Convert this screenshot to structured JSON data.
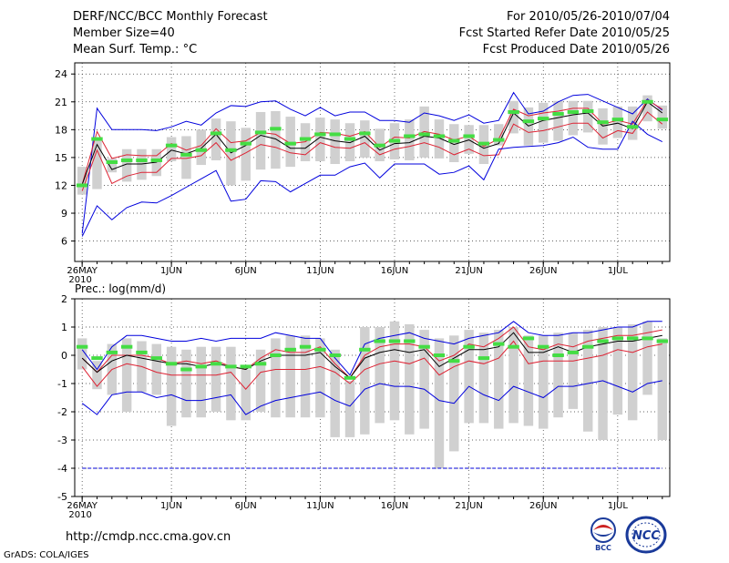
{
  "header": {
    "title": "DERF/NCC/BCC Monthly Forecast",
    "member_size": "Member Size=40",
    "variable": "Mean Surf. Temp.: °C",
    "period": "For 2010/05/26-2010/07/04",
    "fcst_started": "Fcst Started Refer Date 2010/05/25",
    "fcst_produced": "Fcst Produced Date 2010/05/26"
  },
  "footer": {
    "url": "http://cmdp.ncc.cma.gov.cn",
    "credit": "GrADS: COLA/IGES",
    "logo_bcc_text": "BCC",
    "logo_ncc_text": "NCC"
  },
  "colors": {
    "ensemble_mean": "#000000",
    "member_spread": "#dd2233",
    "member_extreme": "#0000dd",
    "climatology": "#44dd44",
    "box": "#d0d0d0",
    "frame": "#000000",
    "grid": "#333333"
  },
  "chart_data": [
    {
      "type": "line",
      "title": "Mean Surf. Temp.: °C",
      "x": [
        1,
        2,
        3,
        4,
        5,
        6,
        7,
        8,
        9,
        10,
        11,
        12,
        13,
        14,
        15,
        16,
        17,
        18,
        19,
        20,
        21,
        22,
        23,
        24,
        25,
        26,
        27,
        28,
        29,
        30,
        31,
        32,
        33,
        34,
        35,
        36,
        37,
        38,
        39,
        40
      ],
      "x_ticks": [
        {
          "x": 1,
          "label": "26MAY",
          "sub": "2010"
        },
        {
          "x": 7,
          "label": "1JUN"
        },
        {
          "x": 12,
          "label": "6JUN"
        },
        {
          "x": 17,
          "label": "11JUN"
        },
        {
          "x": 22,
          "label": "16JUN"
        },
        {
          "x": 27,
          "label": "21JUN"
        },
        {
          "x": 32,
          "label": "26JUN"
        },
        {
          "x": 37,
          "label": "1JUL"
        }
      ],
      "ylim": [
        3.8,
        25.2
      ],
      "y_ticks": [
        6,
        9,
        12,
        15,
        18,
        21,
        24
      ],
      "series": [
        {
          "name": "max",
          "values": [
            6.8,
            20.3,
            18.0,
            18.0,
            18.0,
            17.9,
            18.3,
            18.9,
            18.5,
            19.8,
            20.6,
            20.5,
            21.0,
            21.1,
            20.2,
            19.5,
            20.4,
            19.5,
            19.9,
            19.9,
            19.0,
            19.0,
            18.8,
            19.8,
            19.5,
            19.0,
            19.6,
            18.7,
            19.0,
            22.0,
            19.7,
            20.0,
            21.0,
            21.7,
            21.8,
            21.1,
            20.4,
            19.7,
            21.3,
            20.1
          ]
        },
        {
          "name": "upper",
          "values": [
            12.1,
            17.8,
            14.9,
            15.3,
            15.2,
            15.2,
            16.5,
            15.8,
            16.3,
            18.1,
            16.6,
            16.8,
            17.7,
            17.5,
            16.5,
            16.7,
            17.7,
            17.6,
            17.3,
            17.8,
            16.1,
            17.2,
            17.1,
            17.8,
            17.5,
            16.9,
            17.3,
            16.2,
            17.0,
            20.2,
            19.5,
            19.8,
            20.0,
            20.3,
            20.3,
            18.6,
            19.0,
            18.6,
            21.2,
            20.2
          ]
        },
        {
          "name": "mean",
          "values": [
            12.1,
            16.4,
            13.7,
            14.3,
            14.3,
            14.5,
            15.8,
            15.4,
            16.0,
            17.5,
            15.5,
            16.3,
            17.4,
            17.0,
            16.0,
            16.0,
            17.2,
            16.8,
            16.6,
            17.3,
            15.8,
            16.5,
            16.6,
            17.3,
            17.1,
            16.4,
            16.9,
            16.0,
            16.5,
            19.8,
            18.4,
            19.0,
            19.3,
            19.6,
            19.8,
            18.4,
            18.7,
            18.1,
            21.0,
            19.8
          ]
        },
        {
          "name": "lower",
          "values": [
            11.4,
            15.8,
            12.2,
            13.0,
            13.4,
            13.4,
            14.9,
            14.9,
            15.2,
            16.6,
            14.7,
            15.5,
            16.4,
            16.1,
            15.5,
            15.3,
            16.6,
            16.1,
            16.0,
            16.6,
            15.3,
            15.9,
            16.2,
            16.6,
            16.1,
            15.3,
            15.9,
            15.2,
            15.3,
            18.6,
            17.7,
            17.9,
            18.3,
            18.7,
            18.7,
            17.1,
            17.9,
            17.6,
            19.9,
            18.6
          ]
        },
        {
          "name": "min",
          "values": [
            6.5,
            9.8,
            8.3,
            9.6,
            10.2,
            10.1,
            10.9,
            11.8,
            12.7,
            13.6,
            10.3,
            10.5,
            12.5,
            12.4,
            11.3,
            12.2,
            13.1,
            13.1,
            14.0,
            14.4,
            12.8,
            14.3,
            14.3,
            14.3,
            13.2,
            13.4,
            14.1,
            12.6,
            15.9,
            16.1,
            16.2,
            16.3,
            16.6,
            17.2,
            16.1,
            15.9,
            15.9,
            18.9,
            17.5,
            16.7
          ]
        },
        {
          "name": "observed",
          "values": [
            12.1,
            16.2,
            13.6,
            14.7,
            14.6,
            14.8,
            15.9,
            15.2,
            15.6,
            17.6,
            15.5,
            16.5,
            17.7,
            18.0,
            16.5,
            17.0,
            17.7,
            17.5,
            17.0,
            17.6,
            16.2,
            16.9,
            17.0,
            17.5,
            17.4,
            16.7,
            17.1,
            16.5,
            16.9,
            19.8,
            18.5,
            19.1,
            19.5,
            19.7,
            20.0,
            18.6,
            18.8,
            18.1,
            20.8,
            19.0
          ]
        }
      ],
      "boxes": [
        {
          "lo": 11.0,
          "hi": 14.0
        },
        {
          "lo": 11.6,
          "hi": 17.1
        },
        {
          "lo": 13.4,
          "hi": 14.9
        },
        {
          "lo": 12.4,
          "hi": 15.9
        },
        {
          "lo": 12.6,
          "hi": 15.9
        },
        {
          "lo": 13.0,
          "hi": 15.9
        },
        {
          "lo": 14.6,
          "hi": 17.2
        },
        {
          "lo": 12.7,
          "hi": 17.3
        },
        {
          "lo": 14.2,
          "hi": 18.0
        },
        {
          "lo": 14.7,
          "hi": 19.2
        },
        {
          "lo": 12.0,
          "hi": 18.9
        },
        {
          "lo": 12.5,
          "hi": 18.2
        },
        {
          "lo": 13.7,
          "hi": 19.9
        },
        {
          "lo": 13.8,
          "hi": 20.0
        },
        {
          "lo": 14.0,
          "hi": 19.4
        },
        {
          "lo": 14.6,
          "hi": 18.7
        },
        {
          "lo": 14.6,
          "hi": 19.3
        },
        {
          "lo": 14.3,
          "hi": 19.1
        },
        {
          "lo": 14.6,
          "hi": 18.7
        },
        {
          "lo": 15.0,
          "hi": 19.0
        },
        {
          "lo": 14.6,
          "hi": 18.1
        },
        {
          "lo": 14.8,
          "hi": 18.7
        },
        {
          "lo": 14.7,
          "hi": 19.1
        },
        {
          "lo": 15.0,
          "hi": 20.5
        },
        {
          "lo": 14.9,
          "hi": 19.1
        },
        {
          "lo": 14.5,
          "hi": 18.6
        },
        {
          "lo": 15.4,
          "hi": 18.5
        },
        {
          "lo": 14.3,
          "hi": 18.5
        },
        {
          "lo": 16.3,
          "hi": 18.6
        },
        {
          "lo": 17.6,
          "hi": 21.1
        },
        {
          "lo": 16.3,
          "hi": 20.4
        },
        {
          "lo": 16.6,
          "hi": 20.9
        },
        {
          "lo": 16.8,
          "hi": 21.1
        },
        {
          "lo": 17.4,
          "hi": 21.1
        },
        {
          "lo": 17.7,
          "hi": 21.1
        },
        {
          "lo": 16.4,
          "hi": 20.3
        },
        {
          "lo": 17.1,
          "hi": 20.5
        },
        {
          "lo": 16.9,
          "hi": 20.5
        },
        {
          "lo": 18.9,
          "hi": 21.7
        },
        {
          "lo": 18.1,
          "hi": 20.6
        }
      ],
      "climatology": [
        12.0,
        17.0,
        14.5,
        14.7,
        14.7,
        14.7,
        16.3,
        15.3,
        15.8,
        17.6,
        15.8,
        16.5,
        17.7,
        18.1,
        16.5,
        17.0,
        17.5,
        17.5,
        17.0,
        17.6,
        16.3,
        16.8,
        17.3,
        17.5,
        17.3,
        16.8,
        17.3,
        16.5,
        16.9,
        19.9,
        18.9,
        19.2,
        19.7,
        19.9,
        20.0,
        18.8,
        19.1,
        18.3,
        21.0,
        19.1
      ]
    },
    {
      "type": "line",
      "title": "Prec.: log(mm/d)",
      "x": [
        1,
        2,
        3,
        4,
        5,
        6,
        7,
        8,
        9,
        10,
        11,
        12,
        13,
        14,
        15,
        16,
        17,
        18,
        19,
        20,
        21,
        22,
        23,
        24,
        25,
        26,
        27,
        28,
        29,
        30,
        31,
        32,
        33,
        34,
        35,
        36,
        37,
        38,
        39,
        40
      ],
      "x_ticks": [
        {
          "x": 1,
          "label": "26MAY",
          "sub": "2010"
        },
        {
          "x": 7,
          "label": "1JUN"
        },
        {
          "x": 12,
          "label": "6JUN"
        },
        {
          "x": 17,
          "label": "11JUN"
        },
        {
          "x": 22,
          "label": "16JUN"
        },
        {
          "x": 27,
          "label": "21JUN"
        },
        {
          "x": 32,
          "label": "26JUN"
        },
        {
          "x": 37,
          "label": "1JUL"
        }
      ],
      "ylim": [
        -5,
        2
      ],
      "y_ticks": [
        -5,
        -4,
        -3,
        -2,
        -1,
        0,
        1,
        2
      ],
      "series": [
        {
          "name": "max",
          "values": [
            0.2,
            -0.5,
            0.3,
            0.7,
            0.7,
            0.6,
            0.5,
            0.5,
            0.6,
            0.5,
            0.6,
            0.6,
            0.6,
            0.8,
            0.7,
            0.6,
            0.6,
            -0.1,
            -0.7,
            0.4,
            0.6,
            0.7,
            0.8,
            0.6,
            0.5,
            0.4,
            0.6,
            0.7,
            0.8,
            1.2,
            0.8,
            0.7,
            0.7,
            0.8,
            0.8,
            0.9,
            1.0,
            1.0,
            1.2,
            1.2
          ]
        },
        {
          "name": "upper",
          "values": [
            -0.1,
            -0.6,
            0.0,
            0.0,
            0.0,
            -0.1,
            -0.3,
            -0.2,
            -0.3,
            -0.2,
            -0.4,
            -0.5,
            -0.1,
            0.2,
            0.1,
            0.1,
            0.3,
            -0.3,
            -0.8,
            0.0,
            0.3,
            0.4,
            0.4,
            0.3,
            -0.2,
            0.0,
            0.4,
            0.3,
            0.6,
            1.0,
            0.3,
            0.2,
            0.4,
            0.3,
            0.5,
            0.6,
            0.7,
            0.7,
            0.8,
            0.9
          ]
        },
        {
          "name": "mean",
          "values": [
            -0.1,
            -0.6,
            -0.2,
            0.0,
            -0.1,
            -0.2,
            -0.3,
            -0.3,
            -0.4,
            -0.3,
            -0.4,
            -0.5,
            -0.2,
            0.0,
            0.0,
            0.0,
            0.1,
            -0.4,
            -0.8,
            -0.1,
            0.1,
            0.2,
            0.1,
            0.2,
            -0.4,
            -0.1,
            0.2,
            0.2,
            0.3,
            0.8,
            0.1,
            0.1,
            0.3,
            0.1,
            0.3,
            0.4,
            0.5,
            0.5,
            0.6,
            0.7
          ]
        },
        {
          "name": "lower",
          "values": [
            -0.4,
            -1.1,
            -0.5,
            -0.3,
            -0.4,
            -0.6,
            -0.7,
            -0.7,
            -0.7,
            -0.7,
            -0.6,
            -1.2,
            -0.6,
            -0.5,
            -0.5,
            -0.5,
            -0.4,
            -0.6,
            -1.0,
            -0.5,
            -0.3,
            -0.2,
            -0.3,
            -0.1,
            -0.7,
            -0.4,
            -0.2,
            -0.3,
            -0.1,
            0.5,
            -0.3,
            -0.2,
            -0.2,
            -0.2,
            -0.1,
            0.0,
            0.2,
            0.1,
            0.3,
            0.4
          ]
        },
        {
          "name": "min",
          "values": [
            -1.7,
            -2.1,
            -1.4,
            -1.3,
            -1.3,
            -1.5,
            -1.4,
            -1.6,
            -1.6,
            -1.5,
            -1.4,
            -2.1,
            -1.8,
            -1.6,
            -1.5,
            -1.4,
            -1.3,
            -1.6,
            -1.8,
            -1.2,
            -1.0,
            -1.1,
            -1.1,
            -1.2,
            -1.6,
            -1.7,
            -1.1,
            -1.4,
            -1.6,
            -1.1,
            -1.3,
            -1.5,
            -1.1,
            -1.1,
            -1.0,
            -0.9,
            -1.1,
            -1.3,
            -1.0,
            -0.9
          ]
        },
        {
          "name": "observed",
          "values": [
            0.3,
            -0.1,
            0.1,
            0.3,
            0.1,
            -0.1,
            -0.3,
            -0.5,
            -0.4,
            -0.3,
            -0.4,
            -0.4,
            -0.3,
            0.0,
            0.2,
            0.3,
            0.2,
            0.0,
            -0.8,
            0.2,
            0.5,
            0.5,
            0.5,
            0.3,
            0.0,
            -0.2,
            0.3,
            -0.1,
            0.4,
            0.3,
            0.6,
            0.3,
            0.0,
            0.1,
            0.3,
            0.5,
            0.6,
            0.6,
            0.6,
            0.5
          ]
        },
        {
          "name": "floor",
          "values": [
            -4,
            -4,
            -4,
            -4,
            -4,
            -4,
            -4,
            -4,
            -4,
            -4,
            -4,
            -4,
            -4,
            -4,
            -4,
            -4,
            -4,
            -4,
            -4,
            -4,
            -4,
            -4,
            -4,
            -4,
            -4,
            -4,
            -4,
            -4,
            -4,
            -4,
            -4,
            -4,
            -4,
            -4,
            -4,
            -4,
            -4,
            -4,
            -4,
            -4
          ]
        }
      ],
      "boxes": [
        {
          "lo": -0.5,
          "hi": 0.6
        },
        {
          "lo": -1.2,
          "hi": -0.2
        },
        {
          "lo": -1.4,
          "hi": 0.4
        },
        {
          "lo": -2.0,
          "hi": 0.6
        },
        {
          "lo": -1.3,
          "hi": 0.5
        },
        {
          "lo": -1.4,
          "hi": 0.4
        },
        {
          "lo": -2.5,
          "hi": 0.3
        },
        {
          "lo": -2.2,
          "hi": 0.2
        },
        {
          "lo": -2.2,
          "hi": 0.3
        },
        {
          "lo": -2.0,
          "hi": 0.3
        },
        {
          "lo": -2.3,
          "hi": 0.3
        },
        {
          "lo": -2.3,
          "hi": -0.5
        },
        {
          "lo": -2.0,
          "hi": 0.2
        },
        {
          "lo": -2.2,
          "hi": 0.6
        },
        {
          "lo": -2.2,
          "hi": 0.7
        },
        {
          "lo": -2.2,
          "hi": 0.7
        },
        {
          "lo": -2.2,
          "hi": 0.6
        },
        {
          "lo": -2.9,
          "hi": 0.2
        },
        {
          "lo": -2.9,
          "hi": -0.9
        },
        {
          "lo": -2.8,
          "hi": 1.0
        },
        {
          "lo": -2.4,
          "hi": 1.0
        },
        {
          "lo": -2.3,
          "hi": 1.2
        },
        {
          "lo": -2.8,
          "hi": 1.1
        },
        {
          "lo": -2.6,
          "hi": 0.9
        },
        {
          "lo": -4.0,
          "hi": 0.6
        },
        {
          "lo": -3.4,
          "hi": 0.7
        },
        {
          "lo": -2.4,
          "hi": 0.9
        },
        {
          "lo": -2.4,
          "hi": 0.8
        },
        {
          "lo": -2.6,
          "hi": 0.9
        },
        {
          "lo": -2.4,
          "hi": 1.0
        },
        {
          "lo": -2.5,
          "hi": 0.7
        },
        {
          "lo": -2.6,
          "hi": 0.7
        },
        {
          "lo": -2.2,
          "hi": 0.8
        },
        {
          "lo": -1.9,
          "hi": 0.8
        },
        {
          "lo": -2.7,
          "hi": 0.9
        },
        {
          "lo": -3.0,
          "hi": 1.0
        },
        {
          "lo": -2.1,
          "hi": 1.0
        },
        {
          "lo": -2.3,
          "hi": 1.1
        },
        {
          "lo": -1.4,
          "hi": 1.2
        },
        {
          "lo": -3.0,
          "hi": 0.6
        }
      ],
      "climatology": [
        0.3,
        -0.1,
        0.1,
        0.3,
        0.1,
        -0.1,
        -0.3,
        -0.5,
        -0.4,
        -0.3,
        -0.4,
        -0.4,
        -0.3,
        0.0,
        0.2,
        0.3,
        0.2,
        0.0,
        -0.8,
        0.2,
        0.5,
        0.5,
        0.5,
        0.3,
        0.0,
        -0.2,
        0.3,
        -0.1,
        0.4,
        0.3,
        0.6,
        0.3,
        0.0,
        0.1,
        0.3,
        0.5,
        0.6,
        0.6,
        0.6,
        0.5
      ]
    }
  ]
}
